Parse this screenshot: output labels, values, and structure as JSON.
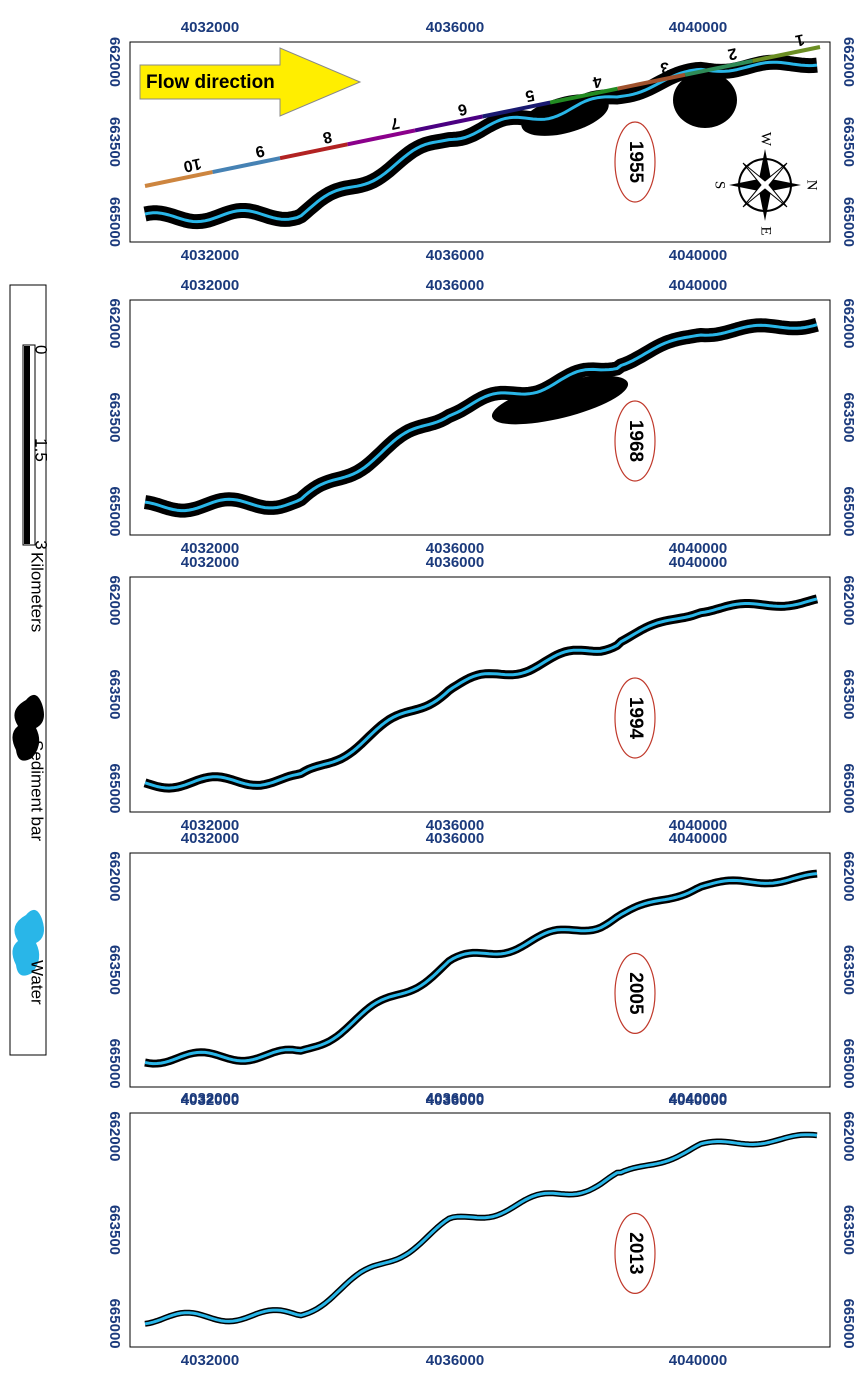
{
  "flow_direction": "Flow direction",
  "segments": [
    "1",
    "2",
    "3",
    "4",
    "5",
    "6",
    "7",
    "8",
    "9",
    "10"
  ],
  "compass": {
    "n": "N",
    "s": "S",
    "e": "E",
    "w": "W"
  },
  "panels": [
    {
      "year": "1955",
      "x_ticks": [
        "4032000",
        "4036000",
        "4040000"
      ],
      "y_ticks": [
        "662000",
        "663500",
        "665000"
      ]
    },
    {
      "year": "1968",
      "x_ticks": [
        "4032000",
        "4036000",
        "4040000"
      ],
      "y_ticks": [
        "662000",
        "663500",
        "665000"
      ]
    },
    {
      "year": "1994",
      "x_ticks": [
        "4032000",
        "4036000",
        "4040000"
      ],
      "y_ticks": [
        "662000",
        "663500",
        "665000"
      ]
    },
    {
      "year": "2005",
      "x_ticks": [
        "4032000",
        "4036000",
        "4040000"
      ],
      "y_ticks": [
        "662000",
        "663500",
        "665000"
      ]
    },
    {
      "year": "2013",
      "x_ticks": [
        "4032000",
        "4036000",
        "4040000"
      ],
      "y_ticks": [
        "662000",
        "663500",
        "665000"
      ]
    }
  ],
  "legend": {
    "scale_labels": [
      "0",
      "1.5",
      "3"
    ],
    "scale_unit": "Kilometers",
    "items": [
      "Sediment bar",
      "Water"
    ]
  }
}
